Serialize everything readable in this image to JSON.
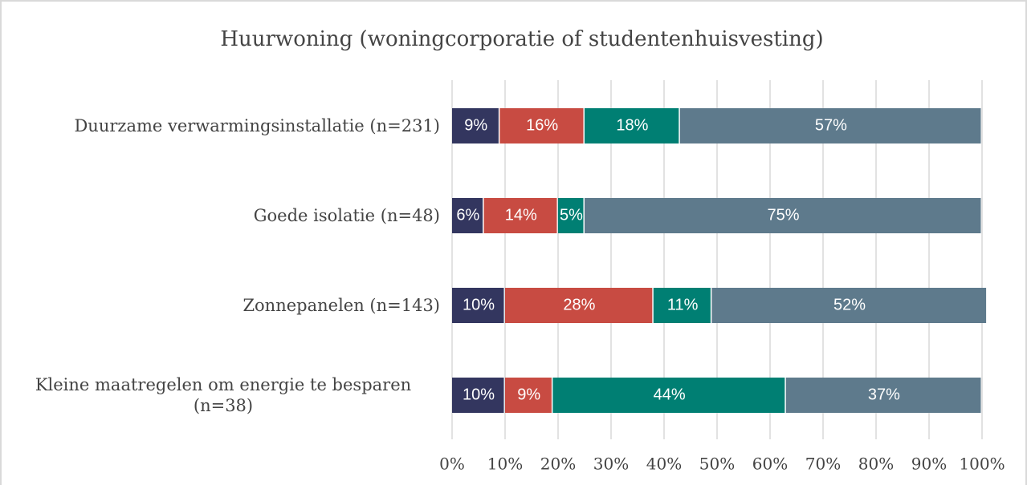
{
  "chart_data": {
    "type": "stacked-bar-horizontal",
    "title": "Huurwoning (woningcorporatie of studentenhuisvesting)",
    "categories": [
      "Duurzame verwarmingsinstallatie (n=231)",
      "Goede isolatie (n=48)",
      "Zonnepanelen (n=143)",
      "Kleine maatregelen om energie te besparen (n=38)"
    ],
    "series": [
      {
        "color": "#33365f",
        "values": [
          9,
          6,
          10,
          10
        ],
        "value_labels": [
          "9%",
          "6%",
          "10%",
          "10%"
        ]
      },
      {
        "color": "#c84b42",
        "values": [
          16,
          14,
          28,
          9
        ],
        "value_labels": [
          "16%",
          "14%",
          "28%",
          "9%"
        ]
      },
      {
        "color": "#007f73",
        "values": [
          18,
          5,
          11,
          44
        ],
        "value_labels": [
          "18%",
          "5%",
          "11%",
          "44%"
        ]
      },
      {
        "color": "#5e7a8c",
        "values": [
          57,
          75,
          52,
          37
        ],
        "value_labels": [
          "57%",
          "75%",
          "52%",
          "37%"
        ]
      }
    ],
    "xlim": [
      0,
      100
    ],
    "xticks": [
      {
        "value": 0,
        "label": "0%"
      },
      {
        "value": 10,
        "label": "10%"
      },
      {
        "value": 20,
        "label": "20%"
      },
      {
        "value": 30,
        "label": "30%"
      },
      {
        "value": 40,
        "label": "40%"
      },
      {
        "value": 50,
        "label": "50%"
      },
      {
        "value": 60,
        "label": "60%"
      },
      {
        "value": 70,
        "label": "70%"
      },
      {
        "value": 80,
        "label": "80%"
      },
      {
        "value": 90,
        "label": "90%"
      },
      {
        "value": 100,
        "label": "100%"
      }
    ],
    "grid": true
  }
}
